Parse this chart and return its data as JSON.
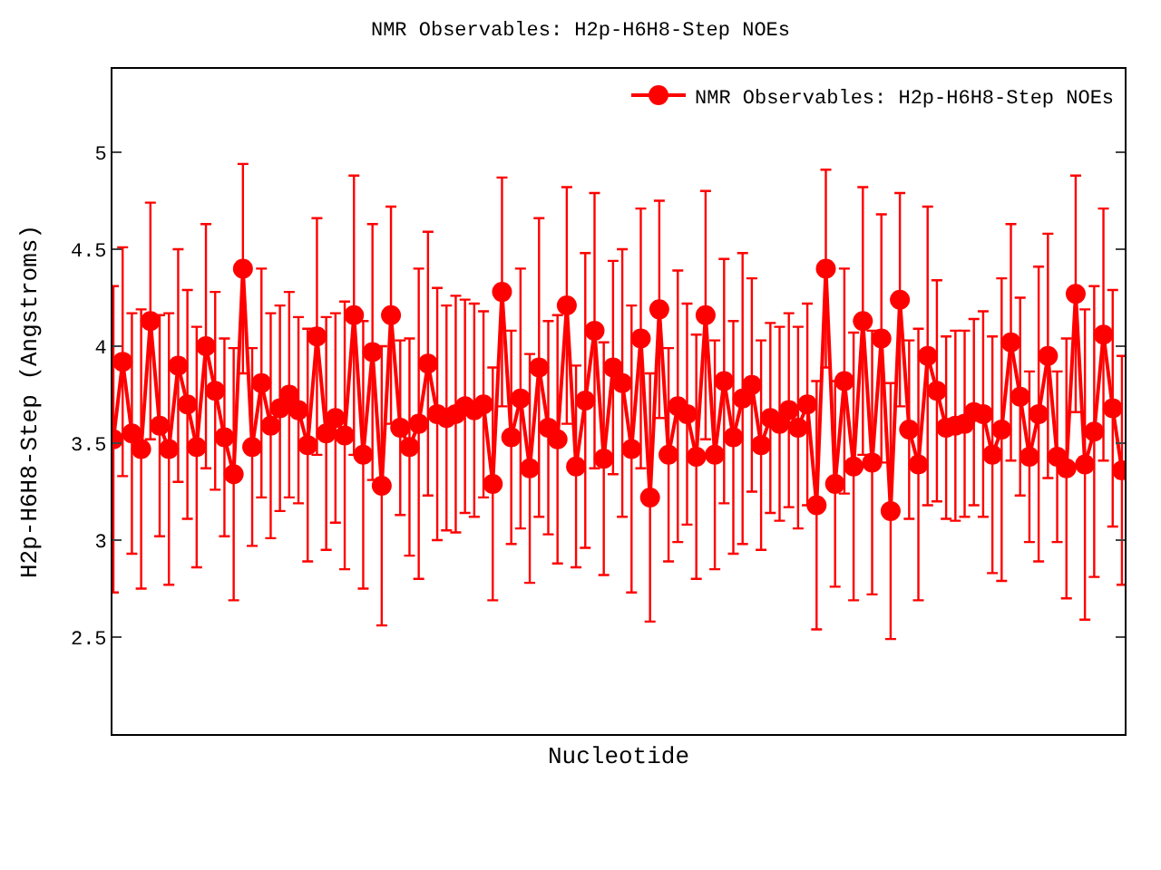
{
  "chart_data": {
    "type": "line",
    "title": "NMR Observables: H2p-H6H8-Step NOEs",
    "xlabel": "Nucleotide",
    "ylabel": "H2p-H6H8-Step (Angstroms)",
    "categories": [
      null,
      null,
      null,
      null,
      null,
      null,
      null,
      null,
      null,
      null,
      null,
      null,
      null,
      null,
      null,
      null,
      null,
      null,
      null,
      null,
      null,
      null,
      null,
      null,
      null,
      null,
      null,
      null,
      null,
      null,
      null,
      null,
      null,
      null,
      null,
      null,
      null,
      null,
      null,
      null,
      null,
      null,
      null,
      null,
      null,
      null,
      null,
      null,
      null,
      null,
      null,
      null,
      null,
      null,
      null,
      null,
      null,
      null,
      null,
      null,
      null,
      null,
      null,
      null,
      null,
      null,
      null,
      null,
      null,
      null,
      null,
      null,
      null,
      null,
      null,
      null,
      null,
      null,
      null,
      null,
      null,
      null,
      null,
      null,
      null,
      null,
      null,
      null,
      null,
      null,
      null,
      null,
      null,
      null,
      null,
      null,
      null,
      null,
      null,
      null,
      null,
      null,
      null,
      null,
      null,
      null,
      null,
      null,
      null,
      null
    ],
    "series": [
      {
        "name": "NMR Observables: H2p-H6H8-Step NOEs",
        "color": "#ff0000",
        "values": [
          3.52,
          3.92,
          3.55,
          3.47,
          4.13,
          3.59,
          3.47,
          3.9,
          3.7,
          3.48,
          4.0,
          3.77,
          3.53,
          3.34,
          4.4,
          3.48,
          3.81,
          3.59,
          3.68,
          3.75,
          3.67,
          3.49,
          4.05,
          3.55,
          3.63,
          3.54,
          4.16,
          3.44,
          3.97,
          3.28,
          4.16,
          3.58,
          3.48,
          3.6,
          3.91,
          3.65,
          3.63,
          3.65,
          3.69,
          3.67,
          3.7,
          3.29,
          4.28,
          3.53,
          3.73,
          3.37,
          3.89,
          3.58,
          3.52,
          4.21,
          3.38,
          3.72,
          4.08,
          3.42,
          3.89,
          3.81,
          3.47,
          4.04,
          3.22,
          4.19,
          3.44,
          3.69,
          3.65,
          3.43,
          4.16,
          3.44,
          3.82,
          3.53,
          3.73,
          3.8,
          3.49,
          3.63,
          3.6,
          3.67,
          3.58,
          3.7,
          3.18,
          4.4,
          3.29,
          3.82,
          3.38,
          4.13,
          3.4,
          4.04,
          3.15,
          4.24,
          3.57,
          3.39,
          3.95,
          3.77,
          3.58,
          3.59,
          3.6,
          3.66,
          3.65,
          3.44,
          3.57,
          4.02,
          3.74,
          3.43,
          3.65,
          3.95,
          3.43,
          3.37,
          4.27,
          3.39,
          3.56,
          4.06,
          3.68,
          3.36
        ],
        "errors": [
          0.79,
          0.59,
          0.62,
          0.72,
          0.61,
          0.57,
          0.7,
          0.6,
          0.59,
          0.62,
          0.63,
          0.51,
          0.51,
          0.65,
          0.54,
          0.51,
          0.59,
          0.58,
          0.53,
          0.53,
          0.48,
          0.6,
          0.61,
          0.6,
          0.54,
          0.69,
          0.72,
          0.69,
          0.66,
          0.72,
          0.56,
          0.45,
          0.56,
          0.8,
          0.68,
          0.65,
          0.58,
          0.61,
          0.55,
          0.55,
          0.48,
          0.6,
          0.59,
          0.55,
          0.67,
          0.59,
          0.77,
          0.55,
          0.64,
          0.61,
          0.52,
          0.76,
          0.71,
          0.6,
          0.55,
          0.69,
          0.74,
          0.67,
          0.64,
          0.56,
          0.55,
          0.7,
          0.57,
          0.63,
          0.64,
          0.59,
          0.63,
          0.6,
          0.75,
          0.55,
          0.54,
          0.49,
          0.5,
          0.5,
          0.52,
          0.52,
          0.64,
          0.51,
          0.53,
          0.58,
          0.69,
          0.69,
          0.68,
          0.64,
          0.66,
          0.55,
          0.46,
          0.7,
          0.77,
          0.57,
          0.47,
          0.49,
          0.48,
          0.48,
          0.53,
          0.61,
          0.78,
          0.61,
          0.51,
          0.44,
          0.76,
          0.63,
          0.44,
          0.67,
          0.61,
          0.8,
          0.75,
          0.65,
          0.61,
          0.59
        ]
      }
    ],
    "ylim": [
      2.0,
      5.43
    ],
    "yticks": [
      2.5,
      3,
      3.5,
      4,
      4.5,
      5
    ],
    "legend": "top right",
    "marker": "circle",
    "line_style": "solid"
  }
}
